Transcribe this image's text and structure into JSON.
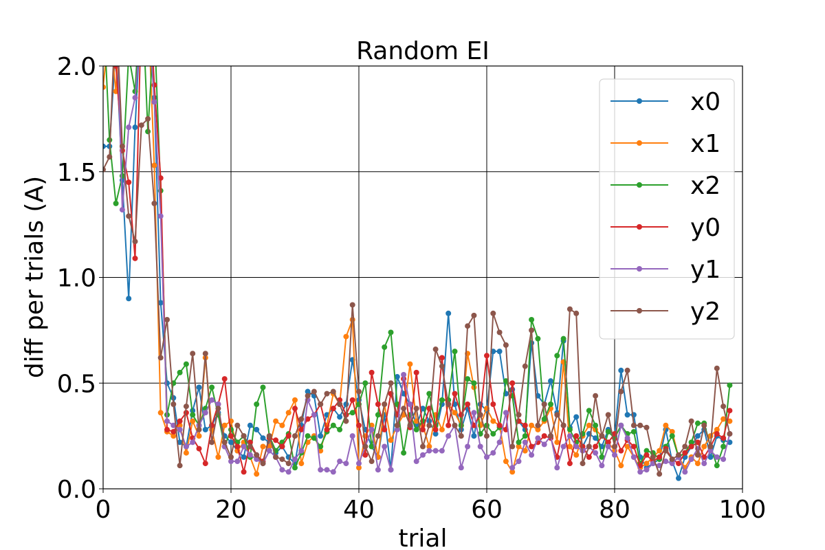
{
  "chart_data": {
    "type": "line",
    "title": "Random EI",
    "x_label": "trial",
    "y_label": "diff  per  trials (A)",
    "xlim": [
      0,
      100
    ],
    "ylim": [
      0,
      2
    ],
    "xticks": [
      0,
      20,
      40,
      60,
      80,
      100
    ],
    "yticks": [
      {
        "value": 0,
        "label": "0.0"
      },
      {
        "value": 0.5,
        "label": "0.5"
      },
      {
        "value": 1,
        "label": "1.0"
      },
      {
        "value": 1.5,
        "label": "1.5"
      },
      {
        "value": 2,
        "label": "2.0"
      }
    ],
    "grid": true,
    "legend": "upper right",
    "x": [
      0,
      1,
      2,
      3,
      4,
      5,
      6,
      7,
      8,
      9,
      10,
      11,
      12,
      13,
      14,
      15,
      16,
      17,
      18,
      19,
      20,
      21,
      22,
      23,
      24,
      25,
      26,
      27,
      28,
      29,
      30,
      31,
      32,
      33,
      34,
      35,
      36,
      37,
      38,
      39,
      40,
      41,
      42,
      43,
      44,
      45,
      46,
      47,
      48,
      49,
      50,
      51,
      52,
      53,
      54,
      55,
      56,
      57,
      58,
      59,
      60,
      61,
      62,
      63,
      64,
      65,
      66,
      67,
      68,
      69,
      70,
      71,
      72,
      73,
      74,
      75,
      76,
      77,
      78,
      79,
      80,
      81,
      82,
      83,
      84,
      85,
      86,
      87,
      88,
      89,
      90,
      91,
      92,
      93,
      94,
      95,
      96,
      97,
      98
    ],
    "series": [
      {
        "name": "x0",
        "color": "#1f77b4",
        "values": [
          1.62,
          1.62,
          2.1,
          1.46,
          0.9,
          1.71,
          2.3,
          2.5,
          1.85,
          0.88,
          0.5,
          0.43,
          0.22,
          0.2,
          0.37,
          0.48,
          0.28,
          0.3,
          0.36,
          0.25,
          0.22,
          0.18,
          0.15,
          0.3,
          0.28,
          0.24,
          0.22,
          0.17,
          0.2,
          0.15,
          0.12,
          0.3,
          0.46,
          0.44,
          0.25,
          0.35,
          0.38,
          0.34,
          0.4,
          0.61,
          0.42,
          0.28,
          0.2,
          0.15,
          0.35,
          0.09,
          0.53,
          0.45,
          0.4,
          0.3,
          0.38,
          0.32,
          0.26,
          0.4,
          0.83,
          0.4,
          0.28,
          0.38,
          0.25,
          0.4,
          0.37,
          0.65,
          0.65,
          0.45,
          0.47,
          0.32,
          0.28,
          0.69,
          0.44,
          0.4,
          0.51,
          0.36,
          0.7,
          0.29,
          0.34,
          0.2,
          0.26,
          0.24,
          0.2,
          0.28,
          0.25,
          0.56,
          0.35,
          0.35,
          0.15,
          0.1,
          0.12,
          0.14,
          0.28,
          0.13,
          0.05,
          0.15,
          0.2,
          0.25,
          0.28,
          0.15,
          0.25,
          0.23,
          0.22
        ]
      },
      {
        "name": "x1",
        "color": "#ff7f0e",
        "values": [
          1.9,
          2.2,
          1.88,
          2.4,
          2.5,
          2.1,
          2.6,
          2.3,
          1.53,
          0.36,
          0.27,
          0.25,
          0.3,
          0.17,
          0.32,
          0.25,
          0.62,
          0.28,
          0.15,
          0.3,
          0.32,
          0.18,
          0.22,
          0.15,
          0.07,
          0.2,
          0.2,
          0.32,
          0.3,
          0.36,
          0.42,
          0.12,
          0.22,
          0.25,
          0.18,
          0.3,
          0.45,
          0.4,
          0.72,
          0.8,
          0.1,
          0.25,
          0.3,
          0.15,
          0.4,
          0.23,
          0.3,
          0.35,
          0.59,
          0.32,
          0.3,
          0.2,
          0.35,
          0.28,
          0.4,
          0.36,
          0.3,
          0.64,
          0.48,
          0.3,
          0.38,
          0.32,
          0.3,
          0.13,
          0.08,
          0.2,
          0.18,
          0.3,
          0.28,
          0.32,
          0.38,
          0.22,
          0.6,
          0.2,
          0.16,
          0.25,
          0.3,
          0.28,
          0.25,
          0.22,
          0.18,
          0.11,
          0.2,
          0.15,
          0.1,
          0.12,
          0.15,
          0.18,
          0.3,
          0.27,
          0.15,
          0.1,
          0.15,
          0.12,
          0.2,
          0.25,
          0.28,
          0.33,
          0.32
        ]
      },
      {
        "name": "x2",
        "color": "#2ca02c",
        "values": [
          2.3,
          1.65,
          1.35,
          1.48,
          2.05,
          1.88,
          2.4,
          1.69,
          2.2,
          1.41,
          0.35,
          0.5,
          0.55,
          0.59,
          0.35,
          0.3,
          0.38,
          0.48,
          0.35,
          0.2,
          0.28,
          0.22,
          0.25,
          0.15,
          0.4,
          0.48,
          0.25,
          0.18,
          0.22,
          0.26,
          0.1,
          0.17,
          0.25,
          0.24,
          0.2,
          0.27,
          0.3,
          0.28,
          0.35,
          0.36,
          0.4,
          0.5,
          0.2,
          0.35,
          0.67,
          0.74,
          0.4,
          0.17,
          0.35,
          0.28,
          0.32,
          0.45,
          0.3,
          0.42,
          0.42,
          0.65,
          0.3,
          0.52,
          0.5,
          0.26,
          0.3,
          0.26,
          0.29,
          0.51,
          0.44,
          0.22,
          0.25,
          0.8,
          0.71,
          0.33,
          0.4,
          0.63,
          0.71,
          0.28,
          0.22,
          0.26,
          0.37,
          0.3,
          0.15,
          0.27,
          0.24,
          0.3,
          0.26,
          0.27,
          0.12,
          0.18,
          0.17,
          0.14,
          0.2,
          0.25,
          0.15,
          0.17,
          0.22,
          0.31,
          0.31,
          0.2,
          0.11,
          0.2,
          0.49
        ]
      },
      {
        "name": "y0",
        "color": "#d62728",
        "values": [
          2.4,
          2.2,
          2.0,
          1.6,
          1.45,
          1.09,
          2.3,
          2.5,
          1.91,
          1.47,
          0.28,
          0.27,
          0.32,
          0.36,
          0.24,
          0.19,
          0.12,
          0.3,
          0.4,
          0.52,
          0.25,
          0.2,
          0.08,
          0.22,
          0.16,
          0.13,
          0.24,
          0.23,
          0.2,
          0.25,
          0.38,
          0.28,
          0.33,
          0.35,
          0.4,
          0.28,
          0.38,
          0.42,
          0.35,
          0.42,
          0.3,
          0.16,
          0.55,
          0.4,
          0.28,
          0.45,
          0.35,
          0.52,
          0.29,
          0.55,
          0.28,
          0.38,
          0.28,
          0.62,
          0.3,
          0.45,
          0.35,
          0.4,
          0.3,
          0.35,
          0.63,
          0.4,
          0.3,
          0.28,
          0.5,
          0.32,
          0.3,
          0.2,
          0.22,
          0.25,
          0.24,
          0.15,
          0.3,
          0.12,
          0.25,
          0.2,
          0.15,
          0.2,
          0.25,
          0.22,
          0.26,
          0.18,
          0.23,
          0.2,
          0.11,
          0.16,
          0.13,
          0.15,
          0.19,
          0.14,
          0.12,
          0.17,
          0.2,
          0.22,
          0.15,
          0.2,
          0.26,
          0.24,
          0.37
        ]
      },
      {
        "name": "y1",
        "color": "#9467bd",
        "values": [
          2.3,
          2.2,
          2.4,
          1.32,
          1.71,
          1.85,
          2.2,
          2.3,
          1.83,
          1.29,
          0.32,
          0.3,
          0.28,
          0.2,
          0.22,
          0.3,
          0.36,
          0.42,
          0.4,
          0.2,
          0.13,
          0.13,
          0.2,
          0.16,
          0.14,
          0.12,
          0.18,
          0.15,
          0.09,
          0.08,
          0.14,
          0.18,
          0.42,
          0.35,
          0.09,
          0.09,
          0.08,
          0.13,
          0.12,
          0.25,
          0.12,
          0.2,
          0.28,
          0.09,
          0.2,
          0.09,
          0.28,
          0.54,
          0.4,
          0.13,
          0.16,
          0.18,
          0.18,
          0.18,
          0.25,
          0.3,
          0.1,
          0.2,
          0.36,
          0.2,
          0.15,
          0.17,
          0.22,
          0.36,
          0.1,
          0.13,
          0.22,
          0.16,
          0.24,
          0.21,
          0.25,
          0.1,
          0.2,
          0.25,
          0.2,
          0.18,
          0.2,
          0.17,
          0.11,
          0.2,
          0.16,
          0.3,
          0.24,
          0.15,
          0.08,
          0.09,
          0.12,
          0.11,
          0.13,
          0.12,
          0.15,
          0.08,
          0.14,
          0.19,
          0.12,
          0.18,
          0.15,
          0.14,
          0.26
        ]
      },
      {
        "name": "y2",
        "color": "#8c564b",
        "values": [
          1.51,
          1.57,
          2.3,
          1.62,
          1.29,
          1.17,
          1.72,
          1.75,
          1.35,
          0.62,
          0.8,
          0.4,
          0.11,
          0.39,
          0.64,
          0.28,
          0.64,
          0.22,
          0.38,
          0.22,
          0.15,
          0.3,
          0.25,
          0.2,
          0.16,
          0.12,
          0.25,
          0.15,
          0.14,
          0.12,
          0.25,
          0.33,
          0.44,
          0.46,
          0.4,
          0.45,
          0.46,
          0.4,
          0.32,
          0.87,
          0.46,
          0.2,
          0.13,
          0.25,
          0.4,
          0.5,
          0.3,
          0.38,
          0.3,
          0.38,
          0.2,
          0.3,
          0.66,
          0.58,
          0.4,
          0.3,
          0.25,
          0.77,
          0.82,
          0.35,
          0.25,
          0.83,
          0.74,
          0.68,
          0.2,
          0.35,
          0.58,
          0.75,
          0.3,
          0.4,
          0.25,
          0.35,
          0.3,
          0.85,
          0.83,
          0.12,
          0.2,
          0.44,
          0.25,
          0.35,
          0.2,
          0.46,
          0.56,
          0.3,
          0.3,
          0.29,
          0.15,
          0.07,
          0.18,
          0.14,
          0.16,
          0.2,
          0.32,
          0.16,
          0.3,
          0.2,
          0.57,
          0.39,
          0.26
        ]
      }
    ]
  }
}
